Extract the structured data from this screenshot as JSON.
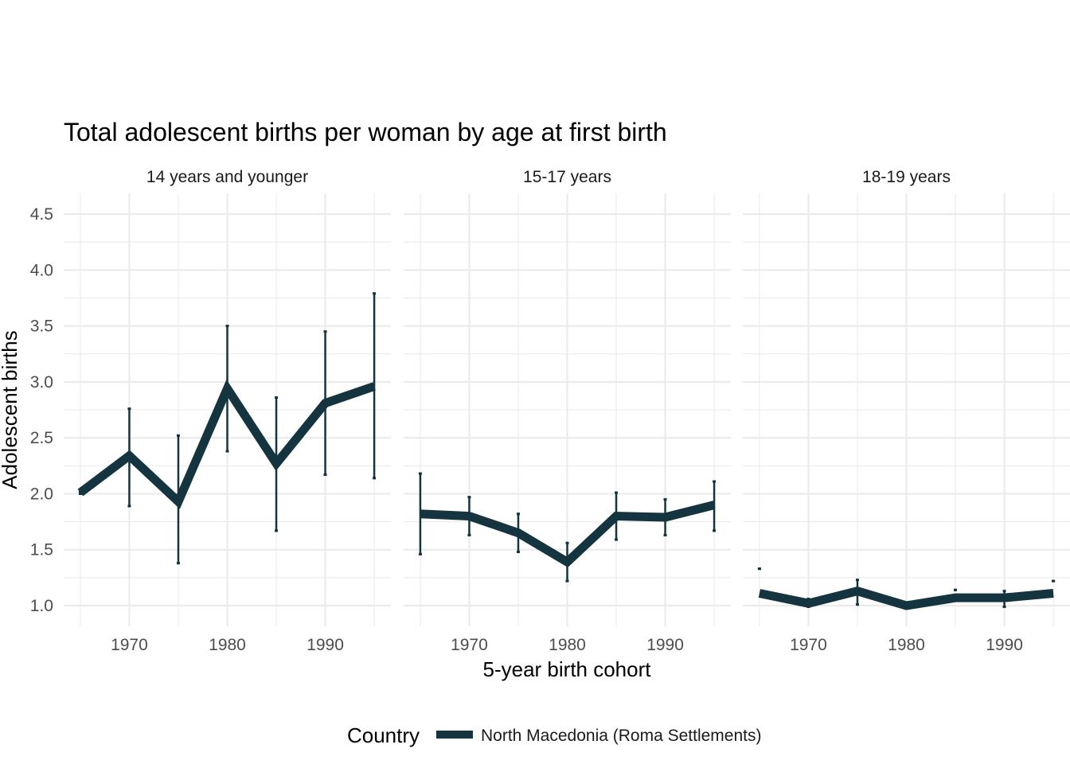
{
  "chart_data": {
    "type": "line",
    "title": "Total adolescent births per woman by age at first birth",
    "xlabel": "5-year birth cohort",
    "ylabel": "Adolescent births",
    "ylim": [
      0.87,
      4.63
    ],
    "xlim": [
      1963.3,
      1996.7
    ],
    "yticks": [
      "1.0",
      "1.5",
      "2.0",
      "2.5",
      "3.0",
      "3.5",
      "4.0",
      "4.5"
    ],
    "xticks": [
      "1970",
      "1980",
      "1990"
    ],
    "grid": true,
    "line_color": "#14343f",
    "legend": {
      "title": "Country",
      "placement": "bottom",
      "entries": [
        "North Macedonia (Roma Settlements)"
      ]
    },
    "x": [
      1965,
      1970,
      1975,
      1980,
      1985,
      1990,
      1995
    ],
    "panels": [
      {
        "label": "14 years and younger",
        "values": [
          2.01,
          2.34,
          1.93,
          2.94,
          2.27,
          2.81,
          2.96
        ],
        "lower": [
          2.0,
          1.89,
          1.38,
          2.38,
          1.67,
          2.17,
          2.14
        ],
        "upper": [
          2.02,
          2.76,
          2.52,
          3.5,
          2.86,
          3.45,
          3.79
        ]
      },
      {
        "label": "15-17 years",
        "values": [
          1.82,
          1.8,
          1.65,
          1.39,
          1.8,
          1.79,
          1.9
        ],
        "lower": [
          1.46,
          1.63,
          1.48,
          1.22,
          1.59,
          1.63,
          1.67
        ],
        "upper": [
          2.18,
          1.97,
          1.82,
          1.56,
          2.01,
          1.95,
          2.11
        ]
      },
      {
        "label": "18-19 years",
        "values": [
          1.11,
          1.02,
          1.13,
          1.0,
          1.07,
          1.07,
          1.11
        ],
        "lower": [
          1.33,
          0.99,
          1.01,
          1.0,
          1.14,
          0.99,
          1.22
        ],
        "upper": [
          1.33,
          1.06,
          1.23,
          1.0,
          1.14,
          1.13,
          1.22
        ]
      }
    ]
  }
}
